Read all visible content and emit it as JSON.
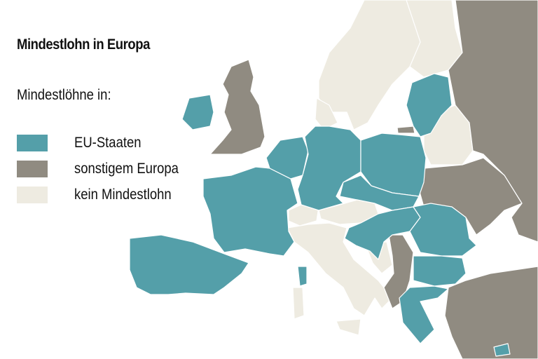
{
  "title": "Mindestlohn in Europa",
  "legend": {
    "heading": "Mindestlöhne in:",
    "items": [
      {
        "label": "EU-Staaten",
        "color": "#549FA9"
      },
      {
        "label": "sonstigem Europa",
        "color": "#908B81"
      },
      {
        "label": "kein Mindestlohn",
        "color": "#EEEBE1"
      }
    ]
  }
}
